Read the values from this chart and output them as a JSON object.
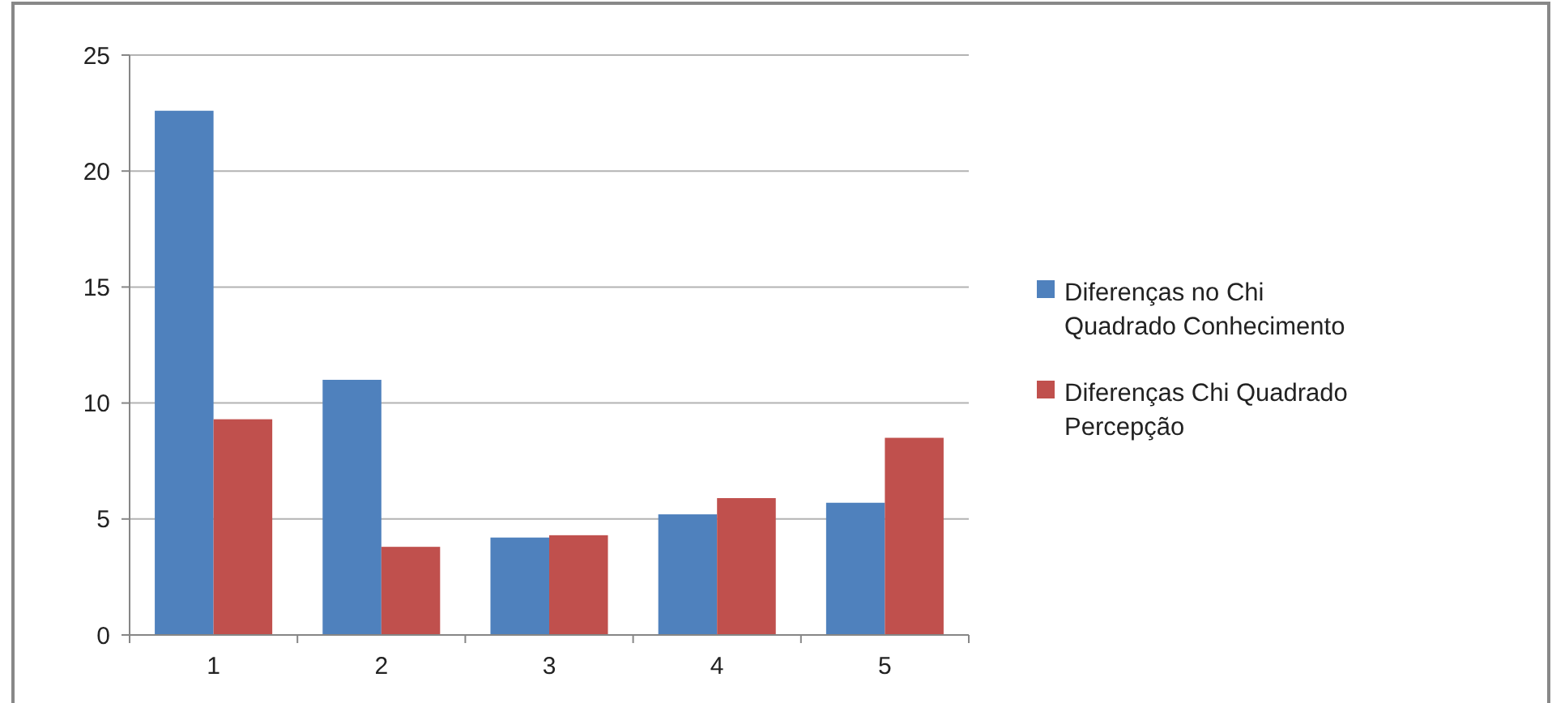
{
  "chart_data": {
    "type": "bar",
    "categories": [
      "1",
      "2",
      "3",
      "4",
      "5"
    ],
    "series": [
      {
        "name": "Diferenças no Chi Quadrado Conhecimento",
        "color": "#4f81bd",
        "values": [
          22.6,
          11.0,
          4.2,
          5.2,
          5.7
        ]
      },
      {
        "name": "Diferenças Chi Quadrado Percepção",
        "color": "#c0504d",
        "values": [
          9.3,
          3.8,
          4.3,
          5.9,
          8.5
        ]
      }
    ],
    "ylim": [
      0,
      25
    ],
    "yticks": [
      0,
      5,
      10,
      15,
      20,
      25
    ],
    "grid": "y",
    "legend": "right"
  }
}
